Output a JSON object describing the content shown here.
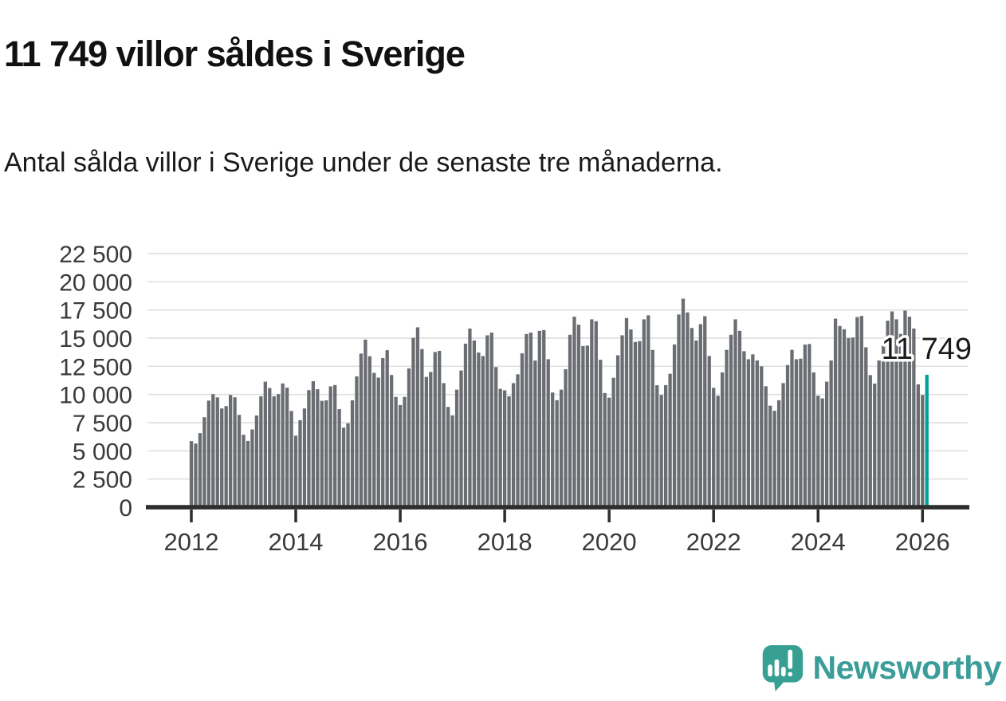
{
  "header": {
    "title": "11 749 villor såldes i Sverige",
    "subtitle": "Antal sålda villor i Sverige under de senaste tre månaderna."
  },
  "footer": {
    "brand": "Newsworthy",
    "logo_icon": "newsworthy-speech-bubble-barchart-icon"
  },
  "colors": {
    "background": "#ffffff",
    "bar": "#6a6d72",
    "accent_bar": "#00a09a",
    "grid": "#e0e0e0",
    "axis": "#2d2d2e",
    "title_text": "#111114",
    "tick_text": "#3a3a3c",
    "annotation_text": "#1a1a1a",
    "annotation_halo": "#ffffff",
    "brand_teal": "#3b9d9a",
    "logo_bubble": "#37a093"
  },
  "chart_data": {
    "type": "bar",
    "title": "11 749 villor såldes i Sverige",
    "subtitle": "Antal sålda villor i Sverige under de senaste tre månaderna.",
    "frequency": "monthly",
    "x_start": "2012-01",
    "x_end": "2026-02",
    "ylim": [
      0,
      22500
    ],
    "grid": true,
    "legend": false,
    "y_ticks": {
      "values": [
        0,
        2500,
        5000,
        7500,
        10000,
        12500,
        15000,
        17500,
        20000,
        22500
      ],
      "labels": [
        "0",
        "2 500",
        "5 000",
        "7 500",
        "10 000",
        "12 500",
        "15 000",
        "17 500",
        "20 000",
        "22 500"
      ]
    },
    "x_ticks": {
      "values": [
        2012,
        2014,
        2016,
        2018,
        2020,
        2022,
        2024,
        2026
      ],
      "labels": [
        "2012",
        "2014",
        "2016",
        "2018",
        "2020",
        "2022",
        "2024",
        "2026"
      ]
    },
    "values": [
      5860,
      5650,
      6570,
      7980,
      9460,
      10030,
      9740,
      8760,
      8970,
      9960,
      9750,
      8190,
      6430,
      5880,
      6900,
      8140,
      9840,
      11140,
      10580,
      9840,
      10030,
      10980,
      10610,
      8540,
      6350,
      7720,
      8760,
      10390,
      11180,
      10470,
      9440,
      9480,
      10720,
      10840,
      8700,
      7060,
      7440,
      9480,
      11610,
      13630,
      14870,
      13390,
      11920,
      11500,
      13230,
      13930,
      11730,
      9790,
      9060,
      9790,
      12310,
      15020,
      15960,
      14030,
      11560,
      12000,
      13770,
      13870,
      11010,
      8900,
      8150,
      10430,
      12130,
      14510,
      15850,
      14790,
      13720,
      13410,
      15250,
      15490,
      12430,
      10500,
      10370,
      9840,
      11010,
      11790,
      13650,
      15370,
      15490,
      13010,
      15650,
      15720,
      13130,
      10180,
      9500,
      10430,
      12240,
      15300,
      16900,
      16200,
      14300,
      14340,
      16670,
      16500,
      13080,
      10130,
      9720,
      11480,
      13480,
      15250,
      16780,
      15770,
      14660,
      14730,
      16670,
      17020,
      13950,
      10820,
      9960,
      10830,
      11840,
      14440,
      17100,
      18500,
      17280,
      15900,
      14790,
      16240,
      16950,
      13420,
      10590,
      9890,
      11960,
      13960,
      15300,
      16670,
      15650,
      13840,
      13130,
      13560,
      13020,
      12500,
      10730,
      9010,
      8550,
      9490,
      11010,
      12610,
      13960,
      13130,
      13180,
      14430,
      14480,
      11960,
      9890,
      9650,
      11140,
      13020,
      16730,
      16080,
      15790,
      15010,
      15060,
      16870,
      16970,
      14190,
      11720,
      10970,
      13020,
      14620,
      16550,
      17370,
      16670,
      15370,
      17440,
      16900,
      15850,
      10900,
      9960,
      11749
    ],
    "highlight": {
      "index": 169,
      "value": 11749,
      "label": "11 749"
    }
  }
}
